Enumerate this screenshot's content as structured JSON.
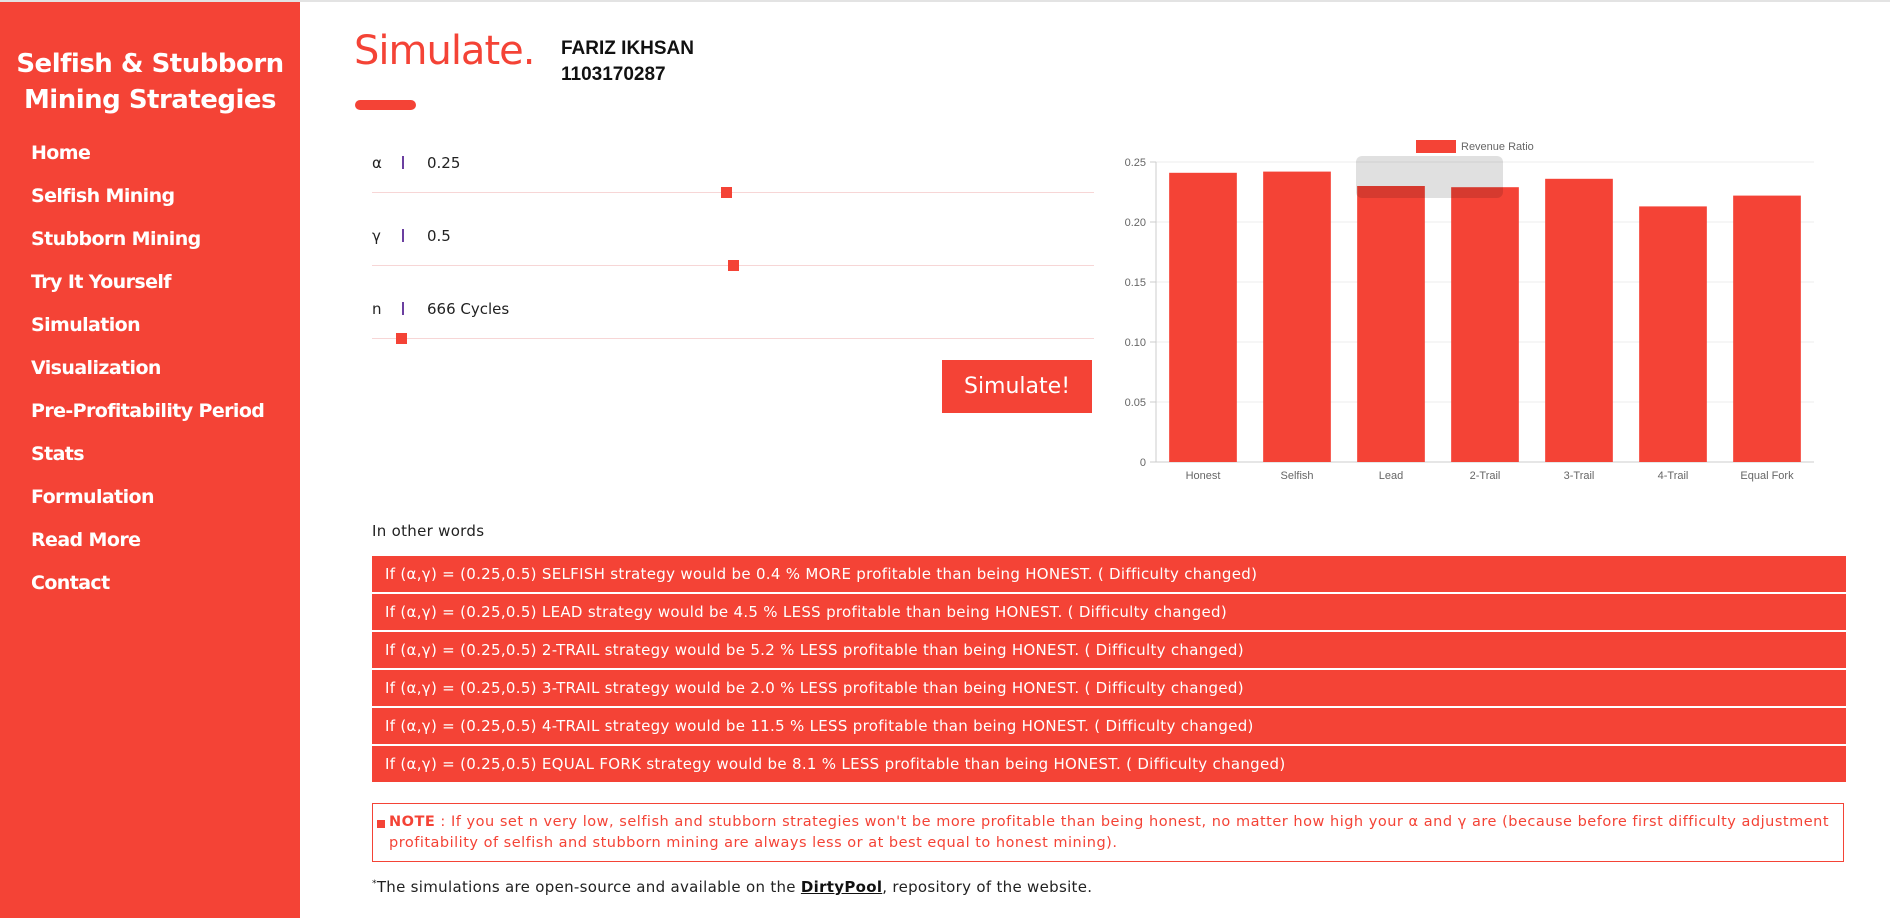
{
  "sidebar": {
    "brand_line1": "Selfish & Stubborn",
    "brand_line2": "Mining Strategies",
    "items": [
      {
        "label": "Home"
      },
      {
        "label": "Selfish Mining"
      },
      {
        "label": "Stubborn Mining"
      },
      {
        "label": "Try It Yourself"
      },
      {
        "label": "Simulation"
      },
      {
        "label": "Visualization"
      },
      {
        "label": "Pre-Profitability Period"
      },
      {
        "label": "Stats"
      },
      {
        "label": "Formulation"
      },
      {
        "label": "Read More"
      },
      {
        "label": "Contact"
      }
    ]
  },
  "header": {
    "title": "Simulate.",
    "author_name": "FARIZ IKHSAN",
    "author_id": "1103170287"
  },
  "params": [
    {
      "symbol": "α",
      "value": "0.25",
      "slider_fraction": 0.49
    },
    {
      "symbol": "γ",
      "value": "0.5",
      "slider_fraction": 0.5
    },
    {
      "symbol": "n",
      "value": "666 Cycles",
      "slider_fraction": 0.04
    }
  ],
  "simulate_button": "Simulate!",
  "colors": {
    "accent": "#f44336",
    "accent_light": "#f7d6d6",
    "grid": "#eeeeee"
  },
  "chart_data": {
    "type": "bar",
    "categories": [
      "Honest",
      "Selfish",
      "Lead",
      "2-Trail",
      "3-Trail",
      "4-Trail",
      "Equal Fork"
    ],
    "series": [
      {
        "name": "Revenue Ratio",
        "values": [
          0.241,
          0.242,
          0.23,
          0.229,
          0.236,
          0.213,
          0.222
        ]
      }
    ],
    "ylim": [
      0,
      0.25
    ],
    "yticks": [
      "0",
      "0.05",
      "0.10",
      "0.15",
      "0.20",
      "0.25"
    ],
    "legend_position": "top",
    "grid": true
  },
  "summary_heading": "In other words",
  "results": [
    "If (α,γ) = (0.25,0.5) SELFISH strategy would be 0.4 % MORE profitable than being HONEST. ( Difficulty changed)",
    "If (α,γ) = (0.25,0.5) LEAD strategy would be 4.5 % LESS profitable than being HONEST. ( Difficulty changed)",
    "If (α,γ) = (0.25,0.5) 2-TRAIL strategy would be 5.2 % LESS profitable than being HONEST. ( Difficulty changed)",
    "If (α,γ) = (0.25,0.5) 3-TRAIL strategy would be 2.0 % LESS profitable than being HONEST. ( Difficulty changed)",
    "If (α,γ) = (0.25,0.5) 4-TRAIL strategy would be 11.5 % LESS profitable than being HONEST. ( Difficulty changed)",
    "If (α,γ) = (0.25,0.5) EQUAL FORK strategy would be 8.1 % LESS profitable than being HONEST. ( Difficulty changed)"
  ],
  "note": {
    "label": "NOTE",
    "text": " : If you set n very low, selfish and stubborn strategies won't be more profitable than being honest, no matter how high your α and γ are (because before first difficulty adjustment profitability of selfish and stubborn mining are always less or at best equal to honest mining)."
  },
  "footer": {
    "mark": "*",
    "text_before": "The simulations are open-source and available on the ",
    "link": "DirtyPool",
    "text_after": ", repository of the website."
  }
}
